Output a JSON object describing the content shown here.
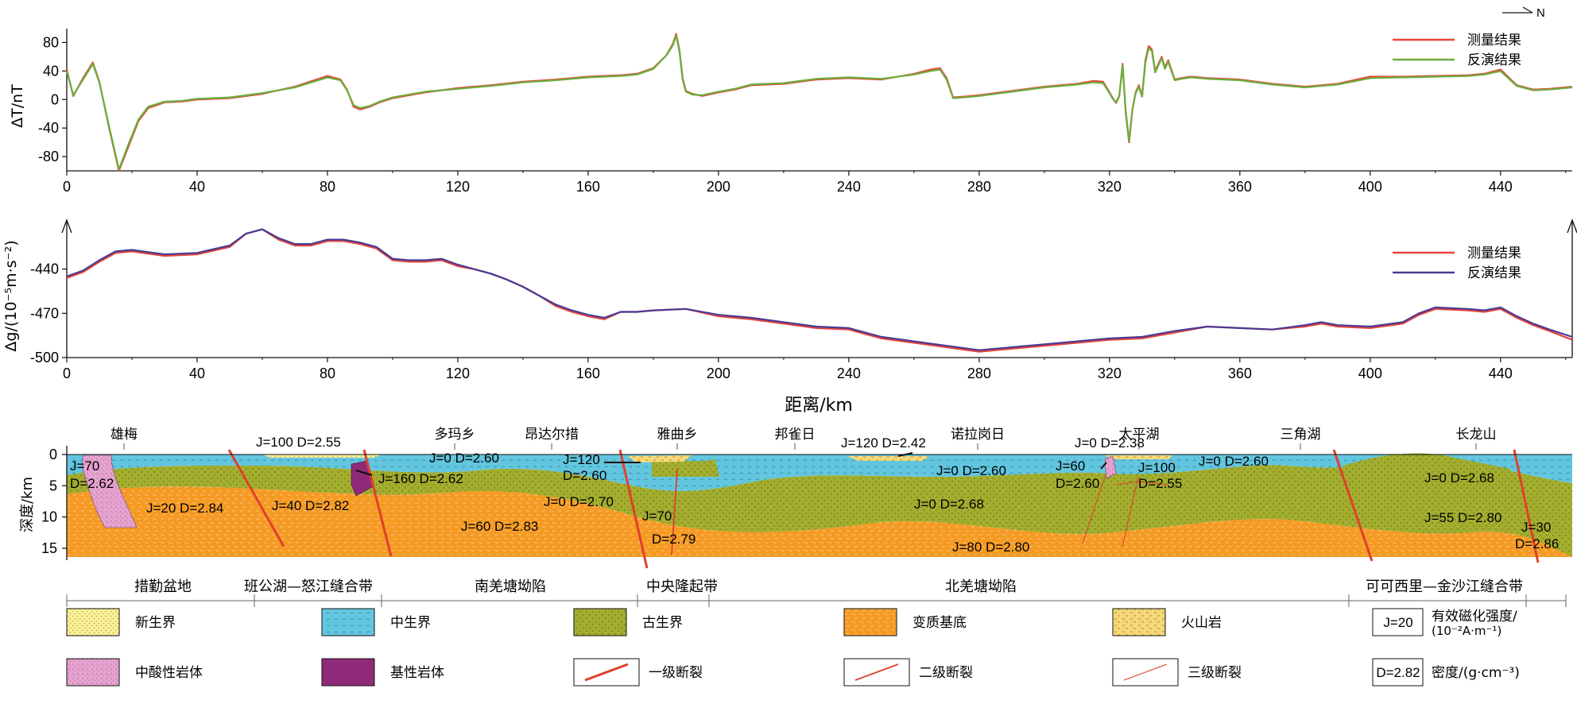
{
  "north_label": "N",
  "chart_data": [
    {
      "type": "line",
      "id": "magnetic",
      "ylabel": "ΔT/nT",
      "xlim": [
        0,
        462
      ],
      "ylim": [
        -100,
        95
      ],
      "x_ticks": [
        "0",
        "40",
        "80",
        "120",
        "160",
        "200",
        "240",
        "280",
        "320",
        "360",
        "400",
        "440"
      ],
      "y_ticks": [
        "80",
        "40",
        "0",
        "-40",
        "-80"
      ],
      "series": [
        {
          "name": "测量结果",
          "color": "#e8443a",
          "x": [
            0,
            2,
            5,
            8,
            10,
            13,
            16,
            19,
            22,
            25,
            30,
            35,
            40,
            50,
            60,
            70,
            80,
            84,
            86,
            88,
            90,
            93,
            96,
            100,
            110,
            120,
            130,
            140,
            150,
            160,
            170,
            175,
            180,
            184,
            186,
            187,
            188,
            189,
            190,
            192,
            195,
            200,
            205,
            210,
            220,
            230,
            240,
            250,
            260,
            265,
            268,
            270,
            272,
            275,
            280,
            290,
            300,
            310,
            315,
            318,
            320,
            321,
            322,
            323,
            324,
            325,
            326,
            327,
            328,
            329,
            330,
            331,
            332,
            333,
            334,
            335,
            336,
            337,
            338,
            340,
            342,
            345,
            350,
            360,
            370,
            380,
            390,
            400,
            410,
            420,
            430,
            435,
            440,
            445,
            450,
            455,
            462
          ],
          "y": [
            42,
            5,
            30,
            52,
            25,
            -40,
            -100,
            -65,
            -30,
            -12,
            -4,
            -3,
            0,
            2,
            8,
            18,
            33,
            28,
            14,
            -10,
            -14,
            -10,
            -4,
            2,
            10,
            16,
            20,
            25,
            28,
            32,
            34,
            36,
            44,
            62,
            78,
            92,
            70,
            30,
            12,
            8,
            5,
            10,
            14,
            20,
            22,
            28,
            30,
            28,
            36,
            42,
            44,
            30,
            3,
            4,
            6,
            12,
            18,
            22,
            26,
            25,
            10,
            2,
            -5,
            5,
            50,
            -20,
            -60,
            -15,
            10,
            20,
            5,
            55,
            75,
            70,
            40,
            50,
            60,
            45,
            55,
            28,
            30,
            32,
            30,
            28,
            22,
            18,
            22,
            32,
            32,
            33,
            34,
            36,
            42,
            20,
            14,
            15,
            18
          ]
        },
        {
          "name": "反演结果",
          "color": "#6cae3c",
          "x": [
            0,
            2,
            5,
            8,
            10,
            13,
            16,
            19,
            22,
            25,
            30,
            35,
            40,
            50,
            60,
            70,
            80,
            84,
            86,
            88,
            90,
            93,
            96,
            100,
            110,
            120,
            130,
            140,
            150,
            160,
            170,
            175,
            180,
            184,
            186,
            187,
            188,
            189,
            190,
            192,
            195,
            200,
            205,
            210,
            220,
            230,
            240,
            250,
            260,
            265,
            268,
            270,
            272,
            275,
            280,
            290,
            300,
            310,
            315,
            318,
            320,
            321,
            322,
            323,
            324,
            325,
            326,
            327,
            328,
            329,
            330,
            331,
            332,
            333,
            334,
            335,
            336,
            337,
            338,
            340,
            342,
            345,
            350,
            360,
            370,
            380,
            390,
            400,
            410,
            420,
            430,
            435,
            440,
            445,
            450,
            455,
            462
          ],
          "y": [
            40,
            6,
            28,
            50,
            24,
            -38,
            -98,
            -62,
            -28,
            -10,
            -3,
            -2,
            1,
            3,
            9,
            17,
            31,
            27,
            13,
            -8,
            -12,
            -9,
            -3,
            3,
            11,
            15,
            19,
            24,
            27,
            31,
            33,
            35,
            43,
            62,
            76,
            90,
            68,
            28,
            11,
            7,
            6,
            11,
            15,
            21,
            23,
            29,
            31,
            29,
            35,
            40,
            42,
            28,
            2,
            3,
            5,
            11,
            17,
            21,
            24,
            23,
            9,
            1,
            -4,
            6,
            48,
            -18,
            -58,
            -14,
            9,
            18,
            4,
            52,
            72,
            68,
            38,
            48,
            58,
            43,
            53,
            27,
            29,
            31,
            29,
            27,
            21,
            17,
            21,
            30,
            31,
            32,
            33,
            35,
            40,
            19,
            13,
            14,
            17
          ]
        }
      ]
    },
    {
      "type": "line",
      "id": "gravity",
      "ylabel": "Δg/(10⁻⁵m·s⁻²)",
      "xlabel": "距离/km",
      "xlim": [
        0,
        462
      ],
      "ylim": [
        -500,
        -410
      ],
      "x_ticks": [
        "0",
        "40",
        "80",
        "120",
        "160",
        "200",
        "240",
        "280",
        "320",
        "360",
        "400",
        "440"
      ],
      "y_ticks": [
        "-440",
        "-470",
        "-500"
      ],
      "series": [
        {
          "name": "测量结果",
          "color": "#e8443a",
          "x": [
            0,
            5,
            10,
            15,
            20,
            30,
            40,
            50,
            55,
            60,
            65,
            70,
            75,
            80,
            85,
            90,
            95,
            100,
            105,
            110,
            115,
            120,
            125,
            130,
            135,
            140,
            145,
            150,
            155,
            160,
            165,
            170,
            175,
            180,
            190,
            200,
            210,
            220,
            230,
            240,
            250,
            260,
            270,
            280,
            290,
            300,
            310,
            320,
            330,
            340,
            350,
            360,
            370,
            380,
            385,
            390,
            400,
            410,
            415,
            420,
            430,
            435,
            440,
            445,
            450,
            455,
            462
          ],
          "y": [
            -446,
            -442,
            -435,
            -429,
            -428,
            -431,
            -430,
            -425,
            -416,
            -413,
            -420,
            -424,
            -424,
            -421,
            -421,
            -423,
            -426,
            -434,
            -435,
            -435,
            -434,
            -438,
            -440,
            -443,
            -447,
            -452,
            -458,
            -465,
            -469,
            -472,
            -474,
            -469,
            -469,
            -468,
            -467,
            -472,
            -474,
            -477,
            -480,
            -481,
            -487,
            -490,
            -493,
            -496,
            -494,
            -492,
            -490,
            -488,
            -487,
            -483,
            -479,
            -480,
            -481,
            -479,
            -477,
            -479,
            -480,
            -477,
            -471,
            -467,
            -468,
            -469,
            -467,
            -473,
            -478,
            -482,
            -488
          ]
        },
        {
          "name": "反演结果",
          "color": "#4b3a93",
          "x": [
            0,
            5,
            10,
            15,
            20,
            30,
            40,
            50,
            55,
            60,
            65,
            70,
            75,
            80,
            85,
            90,
            95,
            100,
            105,
            110,
            115,
            120,
            125,
            130,
            135,
            140,
            145,
            150,
            155,
            160,
            165,
            170,
            175,
            180,
            190,
            200,
            210,
            220,
            230,
            240,
            250,
            260,
            270,
            280,
            290,
            300,
            310,
            320,
            330,
            340,
            350,
            360,
            370,
            380,
            385,
            390,
            400,
            410,
            415,
            420,
            430,
            435,
            440,
            445,
            450,
            455,
            462
          ],
          "y": [
            -445,
            -441,
            -434,
            -428,
            -427,
            -430,
            -429,
            -424,
            -416,
            -413,
            -419,
            -423,
            -423,
            -420,
            -420,
            -422,
            -425,
            -433,
            -434,
            -434,
            -433,
            -437,
            -440,
            -443,
            -447,
            -452,
            -458,
            -464,
            -468,
            -471,
            -473,
            -469,
            -469,
            -468,
            -467,
            -471,
            -473,
            -476,
            -479,
            -480,
            -486,
            -489,
            -492,
            -495,
            -493,
            -491,
            -489,
            -487,
            -486,
            -482,
            -479,
            -480,
            -481,
            -478,
            -476,
            -478,
            -479,
            -476,
            -470,
            -466,
            -467,
            -468,
            -466,
            -472,
            -477,
            -481,
            -486
          ]
        }
      ]
    }
  ],
  "section": {
    "ylabel": "深度/km",
    "y_ticks": [
      "0",
      "5",
      "10",
      "15"
    ],
    "places": [
      "雄梅",
      "多玛乡",
      "昂达尔措",
      "雅曲乡",
      "邦雀日",
      "诺拉岗日",
      "太平湖",
      "三角湖",
      "长龙山"
    ],
    "annotations": [
      "J=70",
      "D=2.62",
      "J=100 D=2.55",
      "J=160 D=2.62",
      "J=20 D=2.84",
      "J=40 D=2.82",
      "J=0 D=2.60",
      "J=120",
      "D=2.60",
      "J=0 D=2.70",
      "J=60 D=2.83",
      "J=70",
      "D=2.79",
      "J=120 D=2.42",
      "J=0 D=2.60",
      "J=0 D=2.68",
      "J=80 D=2.80",
      "J=0 D=2.38",
      "J=60",
      "D=2.60",
      "J=100",
      "D=2.55",
      "J=0 D=2.60",
      "J=0 D=2.68",
      "J=55 D=2.80",
      "J=30",
      "D=2.86"
    ],
    "units": [
      "措勤盆地",
      "班公湖—怒江缝合带",
      "南羌塘坳陷",
      "中央隆起带",
      "北羌塘坳陷",
      "可可西里—金沙江缝合带"
    ]
  },
  "legend": [
    {
      "label": "新生界",
      "key": "cenozoic"
    },
    {
      "label": "中生界",
      "key": "mesozoic"
    },
    {
      "label": "古生界",
      "key": "paleozoic"
    },
    {
      "label": "变质基底",
      "key": "basement"
    },
    {
      "label": "火山岩",
      "key": "volcanic"
    },
    {
      "label": "有效磁化强度/",
      "sub": "(10⁻²A·m⁻¹)",
      "box": "J=20",
      "key": "jbox"
    },
    {
      "label": "中酸性岩体",
      "key": "acid"
    },
    {
      "label": "基性岩体",
      "key": "basic"
    },
    {
      "label": "一级断裂",
      "key": "fault1"
    },
    {
      "label": "二级断裂",
      "key": "fault2"
    },
    {
      "label": "三级断裂",
      "key": "fault3"
    },
    {
      "label": "密度/(g·cm⁻³)",
      "box": "D=2.82",
      "key": "dbox"
    }
  ],
  "colors": {
    "cenozoic": "#f9f19a",
    "mesozoic": "#63c6df",
    "paleozoic": "#a3ae2f",
    "basement": "#f59a22",
    "volcanic": "#f5d97a",
    "acid": "#e6a4d0",
    "basic": "#8e2a78",
    "fault": "#e0402c"
  }
}
